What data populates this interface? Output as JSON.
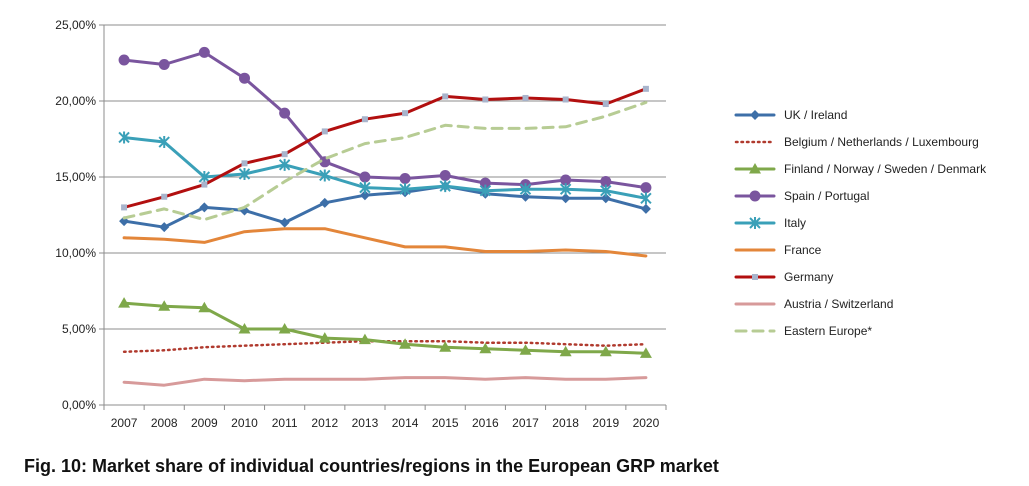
{
  "caption": "Fig.  10: Market share of individual countries/regions in the European GRP market",
  "chart_data": {
    "type": "line",
    "title": "",
    "xlabel": "",
    "ylabel": "",
    "ylim": [
      0,
      25
    ],
    "y_ticks": [
      0,
      5,
      10,
      15,
      20,
      25
    ],
    "y_tick_labels": [
      "0,00%",
      "5,00%",
      "10,00%",
      "15,00%",
      "20,00%",
      "25,00%"
    ],
    "categories": [
      "2007",
      "2008",
      "2009",
      "2010",
      "2011",
      "2012",
      "2013",
      "2014",
      "2015",
      "2016",
      "2017",
      "2018",
      "2019",
      "2020"
    ],
    "grid": true,
    "legend_position": "right",
    "series": [
      {
        "name": "UK / Ireland",
        "color": "#3d6fa8",
        "style": "solid",
        "marker": "diamond",
        "values": [
          12.1,
          11.7,
          13.0,
          12.8,
          12.0,
          13.3,
          13.8,
          14.0,
          14.4,
          13.9,
          13.7,
          13.6,
          13.6,
          12.9
        ]
      },
      {
        "name": "Belgium / Netherlands / Luxembourg",
        "color": "#b03a2e",
        "style": "dotted",
        "marker": "none",
        "values": [
          3.5,
          3.6,
          3.8,
          3.9,
          4.0,
          4.1,
          4.2,
          4.2,
          4.2,
          4.1,
          4.1,
          4.0,
          3.9,
          4.0
        ]
      },
      {
        "name": "Finland / Norway / Sweden / Denmark",
        "color": "#7fa84a",
        "style": "solid",
        "marker": "triangle",
        "values": [
          6.7,
          6.5,
          6.4,
          5.0,
          5.0,
          4.4,
          4.3,
          4.0,
          3.8,
          3.7,
          3.6,
          3.5,
          3.5,
          3.4
        ]
      },
      {
        "name": "Spain / Portugal",
        "color": "#7a559e",
        "style": "solid",
        "marker": "circle",
        "values": [
          22.7,
          22.4,
          23.2,
          21.5,
          19.2,
          16.0,
          15.0,
          14.9,
          15.1,
          14.6,
          14.5,
          14.8,
          14.7,
          14.3
        ]
      },
      {
        "name": "Italy",
        "color": "#3aa0b8",
        "style": "solid",
        "marker": "star",
        "values": [
          17.6,
          17.3,
          15.0,
          15.2,
          15.8,
          15.1,
          14.3,
          14.2,
          14.4,
          14.1,
          14.2,
          14.2,
          14.1,
          13.6
        ]
      },
      {
        "name": "France",
        "color": "#e3863a",
        "style": "solid",
        "marker": "none",
        "values": [
          11.0,
          10.9,
          10.7,
          11.4,
          11.6,
          11.6,
          11.0,
          10.4,
          10.4,
          10.1,
          10.1,
          10.2,
          10.1,
          9.8
        ]
      },
      {
        "name": "Germany",
        "color": "#b20f0f",
        "style": "solid",
        "marker": "square",
        "values": [
          13.0,
          13.7,
          14.5,
          15.9,
          16.5,
          18.0,
          18.8,
          19.2,
          20.3,
          20.1,
          20.2,
          20.1,
          19.8,
          20.8
        ]
      },
      {
        "name": "Austria / Switzerland",
        "color": "#d79a9a",
        "style": "solid",
        "marker": "none",
        "values": [
          1.5,
          1.3,
          1.7,
          1.6,
          1.7,
          1.7,
          1.7,
          1.8,
          1.8,
          1.7,
          1.8,
          1.7,
          1.7,
          1.8
        ]
      },
      {
        "name": "Eastern Europe*",
        "color": "#b7cc94",
        "style": "dashed",
        "marker": "none",
        "values": [
          12.3,
          12.9,
          12.2,
          13.0,
          14.7,
          16.2,
          17.2,
          17.6,
          18.4,
          18.2,
          18.2,
          18.3,
          19.0,
          19.9
        ]
      }
    ]
  }
}
